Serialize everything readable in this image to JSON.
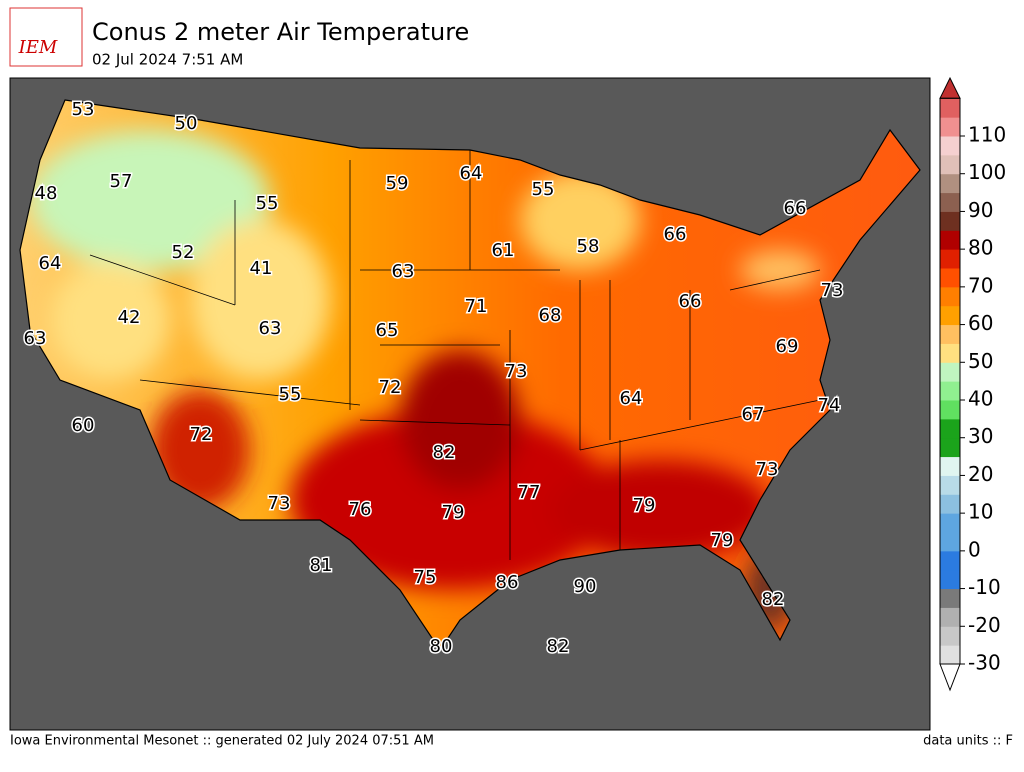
{
  "header": {
    "logo": "IEM",
    "title": "Conus 2 meter Air Temperature",
    "subtitle": "02 Jul 2024 7:51 AM"
  },
  "map": {
    "labels": [
      53,
      50,
      48,
      57,
      55,
      52,
      41,
      64,
      42,
      63,
      63,
      55,
      60,
      72,
      73,
      76,
      81,
      79,
      75,
      80,
      86,
      90,
      82,
      82,
      77,
      72,
      65,
      63,
      59,
      64,
      61,
      71,
      68,
      73,
      55,
      58,
      66,
      66,
      64,
      79,
      79,
      82,
      73,
      67,
      74,
      69,
      73,
      66
    ]
  },
  "colorbar": {
    "ticks": [
      -30,
      -20,
      -10,
      0,
      10,
      20,
      30,
      40,
      50,
      60,
      70,
      80,
      90,
      100,
      110
    ]
  },
  "footer": {
    "left": "Iowa Environmental Mesonet :: generated 02 July 2024 07:51 AM",
    "right": "data units :: F"
  }
}
